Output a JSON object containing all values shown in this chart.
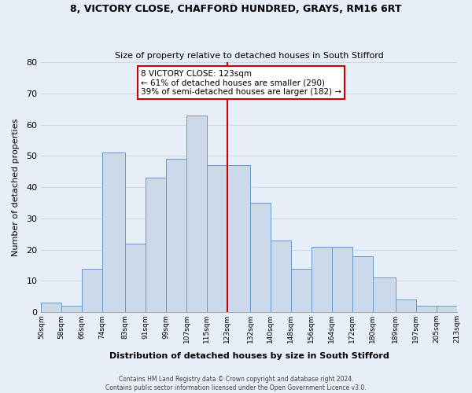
{
  "title": "8, VICTORY CLOSE, CHAFFORD HUNDRED, GRAYS, RM16 6RT",
  "subtitle": "Size of property relative to detached houses in South Stifford",
  "xlabel": "Distribution of detached houses by size in South Stifford",
  "ylabel": "Number of detached properties",
  "bin_labels": [
    "50sqm",
    "58sqm",
    "66sqm",
    "74sqm",
    "83sqm",
    "91sqm",
    "99sqm",
    "107sqm",
    "115sqm",
    "123sqm",
    "132sqm",
    "140sqm",
    "148sqm",
    "156sqm",
    "164sqm",
    "172sqm",
    "180sqm",
    "189sqm",
    "197sqm",
    "205sqm",
    "213sqm"
  ],
  "bin_edges": [
    50,
    58,
    66,
    74,
    83,
    91,
    99,
    107,
    115,
    123,
    132,
    140,
    148,
    156,
    164,
    172,
    180,
    189,
    197,
    205,
    213
  ],
  "bar_heights": [
    3,
    2,
    14,
    51,
    22,
    43,
    49,
    63,
    47,
    47,
    35,
    23,
    14,
    21,
    21,
    18,
    11,
    4,
    2,
    2
  ],
  "bar_facecolor": "#ccd9ea",
  "bar_edgecolor": "#6699cc",
  "property_value": 123,
  "vline_color": "#cc0000",
  "annotation_box_edgecolor": "#cc0000",
  "annotation_title": "8 VICTORY CLOSE: 123sqm",
  "annotation_line1": "← 61% of detached houses are smaller (290)",
  "annotation_line2": "39% of semi-detached houses are larger (182) →",
  "ylim": [
    0,
    80
  ],
  "yticks": [
    0,
    10,
    20,
    30,
    40,
    50,
    60,
    70,
    80
  ],
  "grid_color": "#d0d8e8",
  "background_color": "#e8eef8",
  "footer_line1": "Contains HM Land Registry data © Crown copyright and database right 2024.",
  "footer_line2": "Contains public sector information licensed under the Open Government Licence v3.0."
}
